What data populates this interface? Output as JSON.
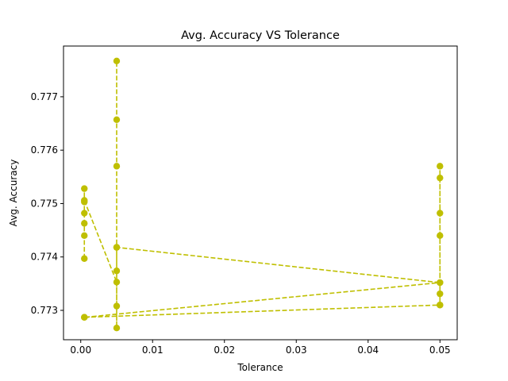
{
  "chart_data": {
    "type": "line",
    "title": "Avg. Accuracy VS Tolerance",
    "xlabel": "Tolerance",
    "ylabel": "Avg. Accuracy",
    "xlim": [
      -0.0024,
      0.0524
    ],
    "ylim": [
      0.77245,
      0.77795
    ],
    "xticks": [
      0.0,
      0.01,
      0.02,
      0.03,
      0.04,
      0.05
    ],
    "xtick_labels": [
      "0.00",
      "0.01",
      "0.02",
      "0.03",
      "0.04",
      "0.05"
    ],
    "yticks": [
      0.773,
      0.774,
      0.775,
      0.776,
      0.777
    ],
    "ytick_labels": [
      "0.773",
      "0.774",
      "0.775",
      "0.776",
      "0.777"
    ],
    "grid": false,
    "legend": "none",
    "series": [
      {
        "color": "#bfbf00",
        "line_style": "dashed",
        "marker": "circle",
        "x": [
          0.0005,
          0.0005,
          0.0005,
          0.0005,
          0.0005,
          0.0005,
          0.0005,
          0.005,
          0.005,
          0.005,
          0.005,
          0.005,
          0.005,
          0.005,
          0.005,
          0.005,
          0.05,
          0.05,
          0.05,
          0.05,
          0.05,
          0.05,
          0.05,
          0.05,
          0.0005
        ],
        "y": [
          0.77397,
          0.7744,
          0.77463,
          0.77482,
          0.77503,
          0.77528,
          0.77506,
          0.77353,
          0.77374,
          0.77418,
          0.77308,
          0.77267,
          0.7757,
          0.77657,
          0.77767,
          0.77418,
          0.77352,
          0.77331,
          0.7731,
          0.7744,
          0.77482,
          0.77548,
          0.7757,
          0.77352,
          0.77287
        ]
      },
      {
        "color": "#bfbf00",
        "line_style": "dashed",
        "marker": "circle",
        "x": [
          0.0005,
          0.05
        ],
        "y": [
          0.77287,
          0.7731
        ]
      }
    ]
  }
}
